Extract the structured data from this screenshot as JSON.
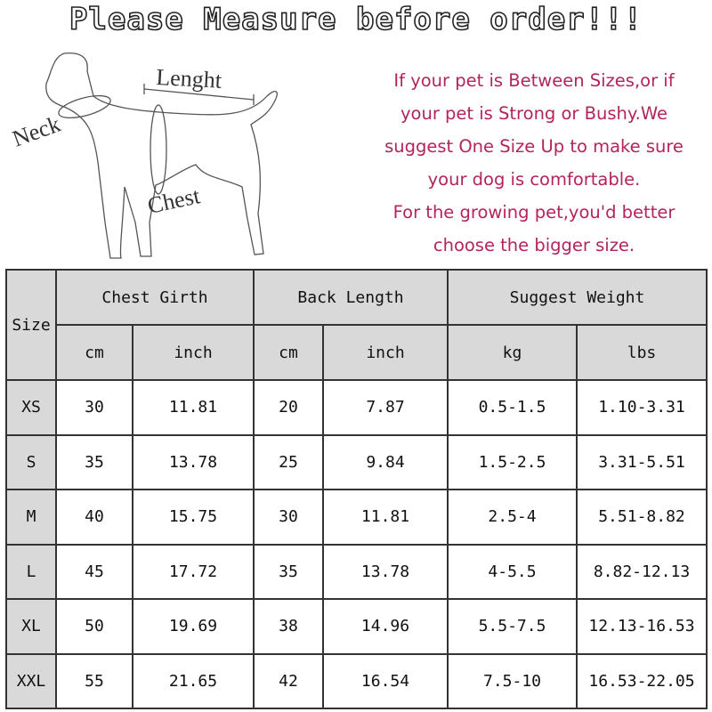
{
  "title": "Please Measure before order!!!",
  "diagram": {
    "labels": {
      "length": "Lenght",
      "neck": "Neck",
      "chest": "Chest"
    }
  },
  "note_lines": [
    "If your pet is Between Sizes,or if",
    "your pet is Strong or Bushy.We",
    "suggest One Size Up to make sure",
    "your dog is comfortable.",
    "For the growing pet,you'd better",
    "choose the bigger size."
  ],
  "colors": {
    "note_text": "#b3245c",
    "header_bg": "#d9d9d9"
  },
  "table": {
    "size_header": "Size",
    "groups": [
      "Chest Girth",
      "Back Length",
      "Suggest Weight"
    ],
    "units": [
      "cm",
      "inch",
      "cm",
      "inch",
      "kg",
      "lbs"
    ],
    "rows": [
      [
        "XS",
        "30",
        "11.81",
        "20",
        "7.87",
        "0.5-1.5",
        "1.10-3.31"
      ],
      [
        "S",
        "35",
        "13.78",
        "25",
        "9.84",
        "1.5-2.5",
        "3.31-5.51"
      ],
      [
        "M",
        "40",
        "15.75",
        "30",
        "11.81",
        "2.5-4",
        "5.51-8.82"
      ],
      [
        "L",
        "45",
        "17.72",
        "35",
        "13.78",
        "4-5.5",
        "8.82-12.13"
      ],
      [
        "XL",
        "50",
        "19.69",
        "38",
        "14.96",
        "5.5-7.5",
        "12.13-16.53"
      ],
      [
        "XXL",
        "55",
        "21.65",
        "42",
        "16.54",
        "7.5-10",
        "16.53-22.05"
      ]
    ]
  }
}
